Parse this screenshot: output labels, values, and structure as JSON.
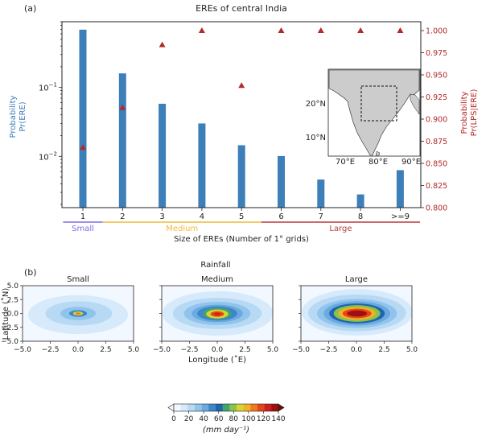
{
  "chart_data": [
    {
      "panel": "(a)",
      "type": "bar",
      "title": "EREs of central India",
      "xlabel": "Size of EREs (Number of 1° grids)",
      "ylabel_left": [
        "Probability",
        "Pr(ERE)"
      ],
      "ylabel_right": [
        "Probability",
        "Pr(LPS|ERE)"
      ],
      "yscale_left": "log",
      "ylim_left": [
        0.0018,
        0.9
      ],
      "ylim_right": [
        0.8,
        1.01
      ],
      "categories": [
        "1",
        "2",
        "3",
        "4",
        "5",
        "6",
        "7",
        "8",
        ">=9"
      ],
      "bar_values": [
        0.69,
        0.16,
        0.058,
        0.03,
        0.0145,
        0.0101,
        0.0046,
        0.0028,
        0.0063
      ],
      "triangle_values": [
        0.868,
        0.913,
        0.984,
        1.0,
        0.938,
        1.0,
        1.0,
        1.0,
        1.0
      ],
      "left_ticks": [
        {
          "v": 0.1,
          "base": "10",
          "exp": "−1"
        },
        {
          "v": 0.01,
          "base": "10",
          "exp": "−2"
        }
      ],
      "right_ticks": [
        "0.800",
        "0.825",
        "0.850",
        "0.875",
        "0.900",
        "0.925",
        "0.950",
        "0.975",
        "1.000"
      ],
      "groups": [
        {
          "label": "Small",
          "from": 1,
          "to": 1,
          "color": "#7b6ee8"
        },
        {
          "label": "Medium",
          "from": 2,
          "to": 5,
          "color": "#f5b73b"
        },
        {
          "label": "Large",
          "from": 6,
          "to": 9,
          "color": "#b83b3b"
        }
      ],
      "colors": {
        "bar": "#3d7fb8",
        "triangle": "#b22a2a",
        "left_axis": "#3d7fb8",
        "right_axis": "#b22a2a"
      },
      "inset": {
        "lat_ticks": [
          "20°N",
          "10°N"
        ],
        "lon_ticks": [
          "70°E",
          "80°E",
          "90°E"
        ]
      }
    },
    {
      "panel": "(b)",
      "type": "heatmap",
      "title": "Rainfall",
      "subplots": [
        "Small",
        "Medium",
        "Large"
      ],
      "xlabel": "Longitude (˚E)",
      "ylabel": "Latitude (˚N)",
      "xlim": [
        -5.0,
        5.0
      ],
      "ylim": [
        -5.0,
        5.0
      ],
      "x_ticks": [
        "−5.0",
        "−2.5",
        "0.0",
        "2.5",
        "5.0"
      ],
      "y_ticks": [
        "5.0",
        "2.5",
        "0.0",
        "−2.5",
        "−5.0"
      ],
      "colorbar_ticks": [
        "0",
        "20",
        "40",
        "60",
        "80",
        "100",
        "120",
        "140"
      ],
      "colorbar_range": [
        0,
        140
      ],
      "colorbar_label": "(mm day⁻¹)"
    }
  ]
}
